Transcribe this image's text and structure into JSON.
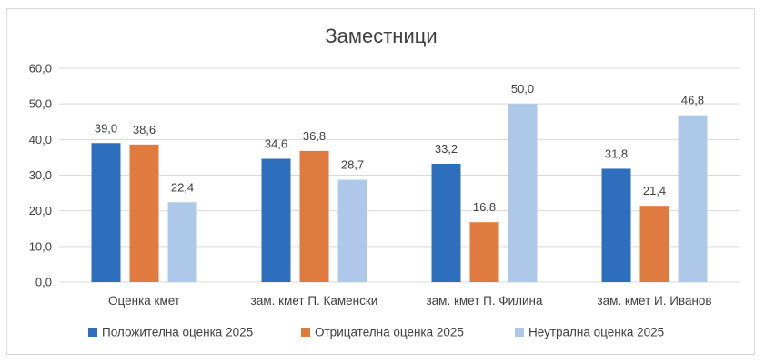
{
  "chart_data": {
    "type": "bar",
    "title": "Заместници",
    "categories": [
      "Оценка кмет",
      "зам. кмет П. Каменски",
      "зам. кмет П. Филина",
      "зам. кмет И. Иванов"
    ],
    "series": [
      {
        "name": "Положителна оценка 2025",
        "color": "#2e6fbd",
        "values": [
          39.0,
          34.6,
          33.2,
          31.8
        ]
      },
      {
        "name": "Отрицателна оценка 2025",
        "color": "#e07b3f",
        "values": [
          38.6,
          36.8,
          16.8,
          21.4
        ]
      },
      {
        "name": "Неутрална оценка 2025",
        "color": "#adc8e8",
        "values": [
          22.4,
          28.7,
          50.0,
          46.8
        ]
      }
    ],
    "ylim": [
      0,
      60
    ],
    "yticks": [
      0,
      10,
      20,
      30,
      40,
      50,
      60
    ],
    "number_format": "comma-one-decimal",
    "grid": true,
    "legend": "bottom"
  }
}
